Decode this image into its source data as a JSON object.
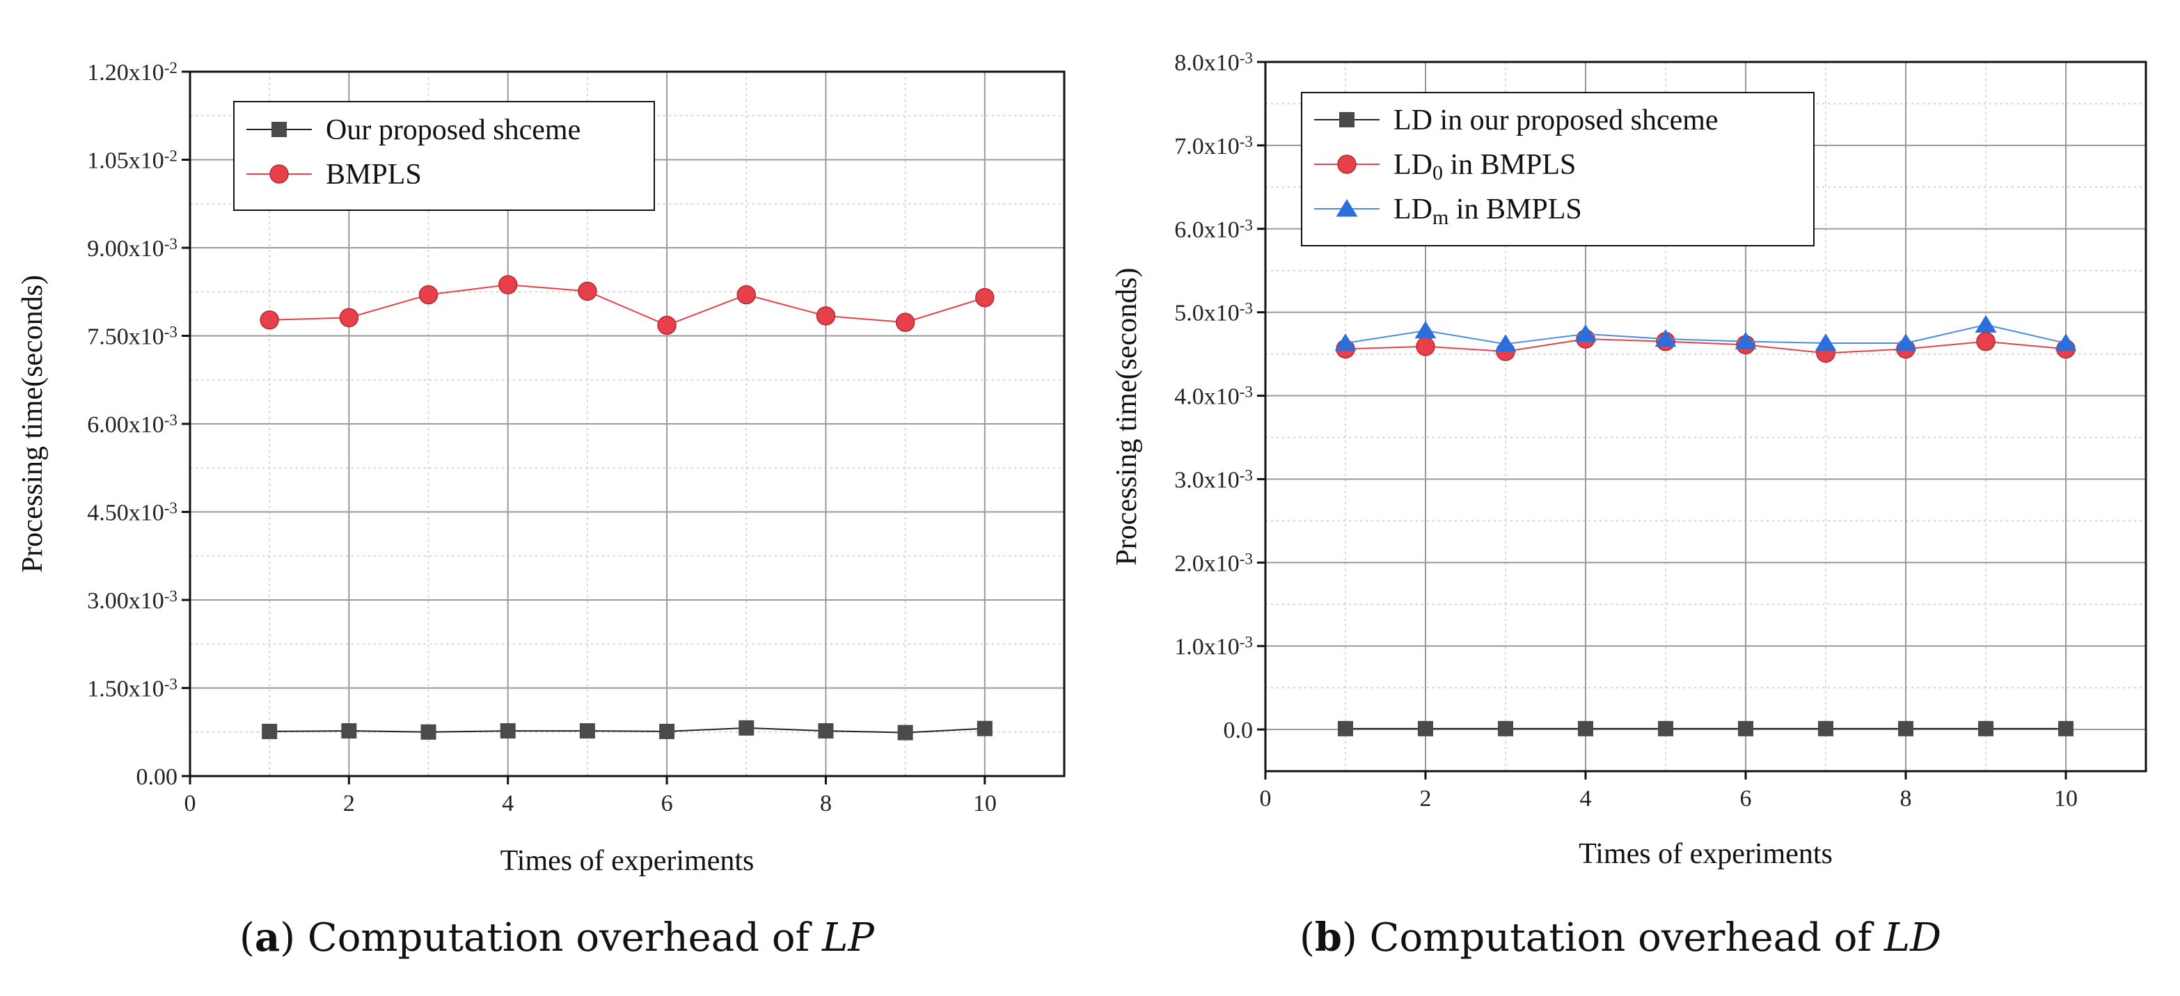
{
  "chart_data": [
    {
      "id": "a",
      "type": "line",
      "caption": {
        "label": "(a)",
        "text": "Computation overhead of ",
        "var": "LP"
      },
      "xlabel": "Times of experiments",
      "ylabel": "Processing time(seconds)",
      "xlim": [
        0,
        11
      ],
      "ylim": [
        0,
        0.012
      ],
      "xticks": [
        0,
        2,
        4,
        6,
        8,
        10
      ],
      "xtick_labels": [
        "0",
        "2",
        "4",
        "6",
        "8",
        "10"
      ],
      "yticks": [
        0,
        0.0015,
        0.003,
        0.0045,
        0.006,
        0.0075,
        0.009,
        0.0105,
        0.012
      ],
      "ytick_labels": [
        {
          "base": "0.00",
          "exp": ""
        },
        {
          "base": "1.50x10",
          "exp": "-3"
        },
        {
          "base": "3.00x10",
          "exp": "-3"
        },
        {
          "base": "4.50x10",
          "exp": "-3"
        },
        {
          "base": "6.00x10",
          "exp": "-3"
        },
        {
          "base": "7.50x10",
          "exp": "-3"
        },
        {
          "base": "9.00x10",
          "exp": "-3"
        },
        {
          "base": "1.05x10",
          "exp": "-2"
        },
        {
          "base": "1.20x10",
          "exp": "-2"
        }
      ],
      "legend_position": "top-left",
      "x": [
        1,
        2,
        3,
        4,
        5,
        6,
        7,
        8,
        9,
        10
      ],
      "series": [
        {
          "name": "Our proposed shceme",
          "name_base": "Our proposed shceme",
          "name_sub": "",
          "name_rest": "",
          "marker": "square",
          "color": "#4a4a4a",
          "line_color": "#222222",
          "values": [
            0.00076,
            0.00077,
            0.00075,
            0.00077,
            0.00077,
            0.00076,
            0.00082,
            0.00077,
            0.00074,
            0.00081
          ]
        },
        {
          "name": "BMPLS",
          "name_base": "BMPLS",
          "name_sub": "",
          "name_rest": "",
          "marker": "circle",
          "color": "#e8404a",
          "line_color": "#e8404a",
          "values": [
            0.00777,
            0.00781,
            0.0082,
            0.00837,
            0.00826,
            0.00768,
            0.0082,
            0.00784,
            0.00773,
            0.00815
          ]
        }
      ]
    },
    {
      "id": "b",
      "type": "line",
      "caption": {
        "label": "(b)",
        "text": "Computation overhead of ",
        "var": "LD"
      },
      "xlabel": "Times of experiments",
      "ylabel": "Processing time(seconds)",
      "xlim": [
        0,
        11
      ],
      "ylim": [
        -0.0005,
        0.008
      ],
      "xticks": [
        0,
        2,
        4,
        6,
        8,
        10
      ],
      "xtick_labels": [
        "0",
        "2",
        "4",
        "6",
        "8",
        "10"
      ],
      "yticks": [
        0,
        0.001,
        0.002,
        0.003,
        0.004,
        0.005,
        0.006,
        0.007,
        0.008
      ],
      "ytick_labels": [
        {
          "base": "0.0",
          "exp": ""
        },
        {
          "base": "1.0x10",
          "exp": "-3"
        },
        {
          "base": "2.0x10",
          "exp": "-3"
        },
        {
          "base": "3.0x10",
          "exp": "-3"
        },
        {
          "base": "4.0x10",
          "exp": "-3"
        },
        {
          "base": "5.0x10",
          "exp": "-3"
        },
        {
          "base": "6.0x10",
          "exp": "-3"
        },
        {
          "base": "7.0x10",
          "exp": "-3"
        },
        {
          "base": "8.0x10",
          "exp": "-3"
        }
      ],
      "legend_position": "top-left",
      "x": [
        1,
        2,
        3,
        4,
        5,
        6,
        7,
        8,
        9,
        10
      ],
      "series": [
        {
          "name": "LD in our proposed shceme",
          "name_base": "LD in our proposed shceme",
          "name_sub": "",
          "name_rest": "",
          "marker": "square",
          "color": "#4a4a4a",
          "line_color": "#222222",
          "values": [
            1e-05,
            1e-05,
            1e-05,
            1e-05,
            1e-05,
            1e-05,
            1e-05,
            1e-05,
            1e-05,
            1e-05
          ]
        },
        {
          "name": "LD0 in BMPLS",
          "name_base": "LD",
          "name_sub": "0",
          "name_rest": " in BMPLS",
          "marker": "circle",
          "color": "#e8404a",
          "line_color": "#e8404a",
          "values": [
            0.00456,
            0.00459,
            0.00453,
            0.00468,
            0.00465,
            0.00461,
            0.00451,
            0.00456,
            0.00465,
            0.00456
          ]
        },
        {
          "name": "LDm in BMPLS",
          "name_base": "LD",
          "name_sub": "m",
          "name_rest": " in BMPLS",
          "marker": "triangle",
          "color": "#2a6fdc",
          "line_color": "#4a8ce8",
          "values": [
            0.00463,
            0.00478,
            0.00462,
            0.00474,
            0.00468,
            0.00465,
            0.00463,
            0.00463,
            0.00485,
            0.00463
          ]
        }
      ]
    }
  ]
}
